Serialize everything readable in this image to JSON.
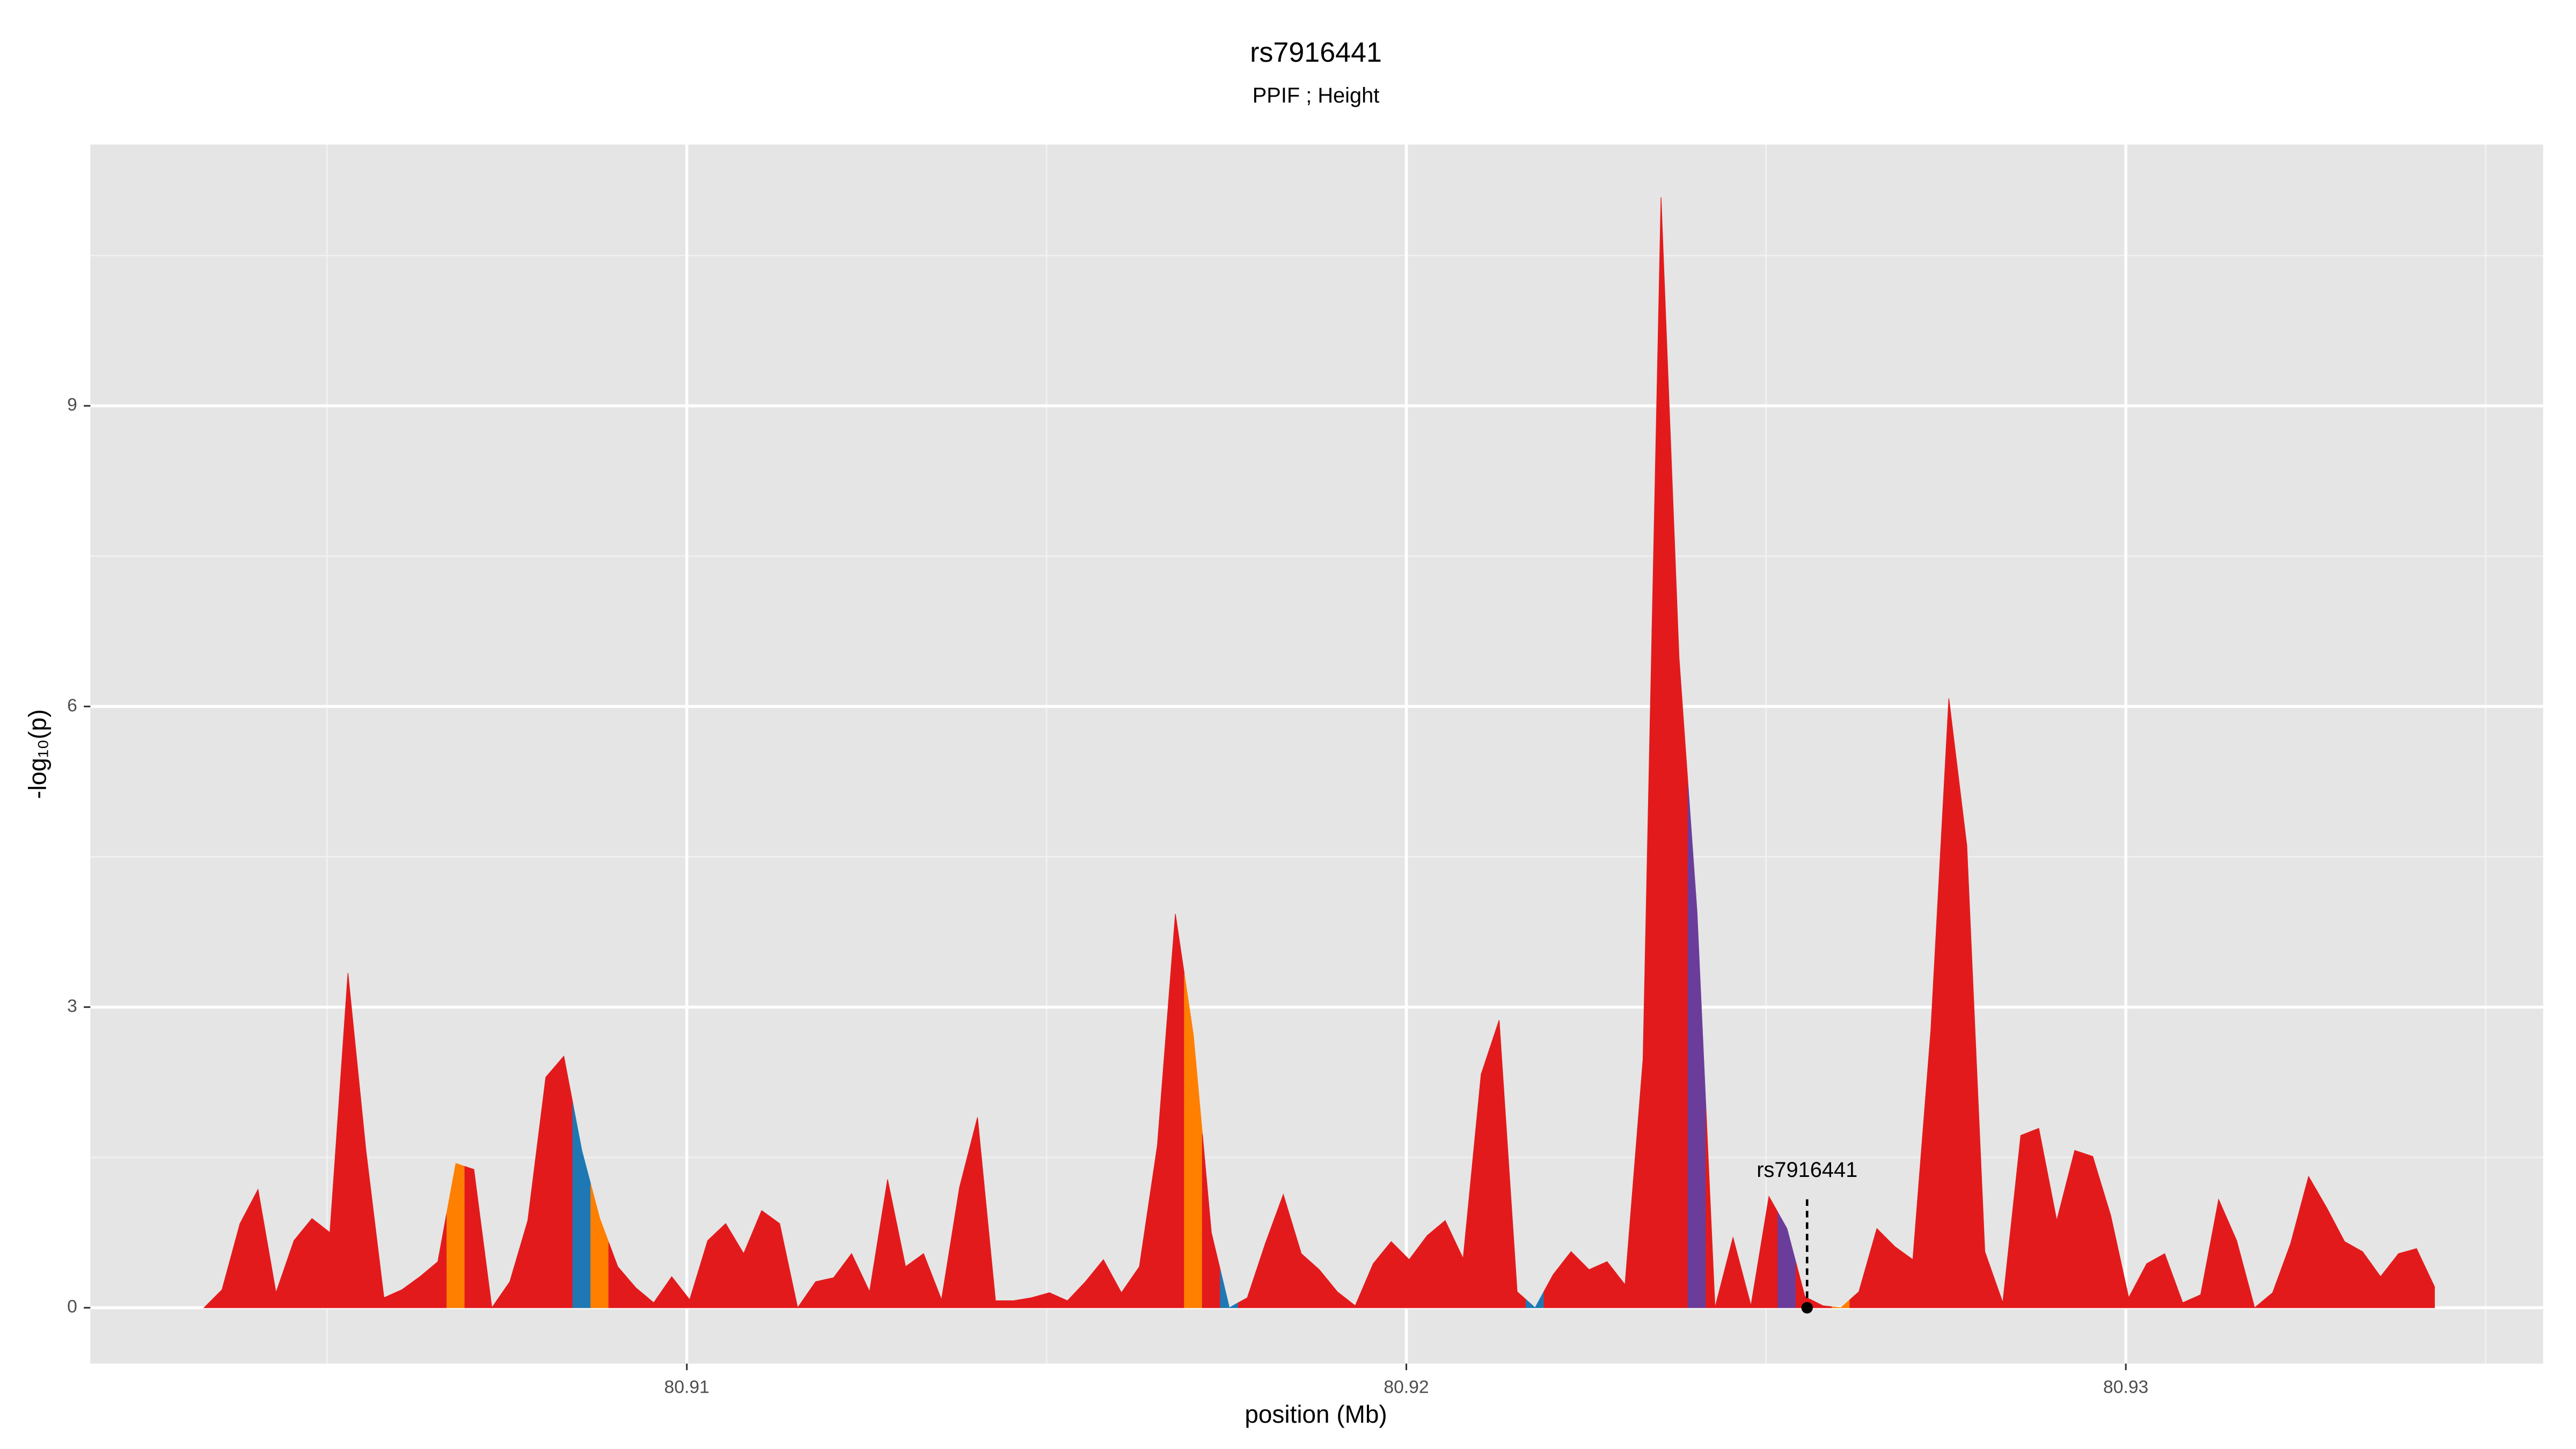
{
  "chart_data": {
    "type": "area",
    "title": "rs7916441",
    "subtitle": "PPIF ; Height",
    "xlabel": "position (Mb)",
    "ylabel": "-log₁₀(p)",
    "xlim": [
      80.90171,
      80.9358
    ],
    "ylim": [
      -0.557,
      11.607
    ],
    "xticks": [
      80.91,
      80.92,
      80.93
    ],
    "yticks": [
      0,
      3,
      6,
      9
    ],
    "grid": true,
    "x": [
      80.90329,
      80.90354,
      80.90379,
      80.90404,
      80.90429,
      80.90454,
      80.90479,
      80.90504,
      80.90529,
      80.90554,
      80.90579,
      80.90604,
      80.90629,
      80.90654,
      80.90679,
      80.90704,
      80.90729,
      80.90754,
      80.90779,
      80.90804,
      80.90829,
      80.90854,
      80.90879,
      80.90904,
      80.90929,
      80.90954,
      80.90979,
      80.91004,
      80.91029,
      80.91054,
      80.91079,
      80.91104,
      80.91129,
      80.91154,
      80.91179,
      80.91204,
      80.91229,
      80.91254,
      80.91279,
      80.91304,
      80.91329,
      80.91354,
      80.91379,
      80.91404,
      80.91429,
      80.91454,
      80.91479,
      80.91504,
      80.91529,
      80.91554,
      80.91579,
      80.91604,
      80.91629,
      80.91654,
      80.91679,
      80.91704,
      80.91729,
      80.91754,
      80.91779,
      80.91804,
      80.91829,
      80.91854,
      80.91879,
      80.91904,
      80.91929,
      80.91954,
      80.91979,
      80.92004,
      80.92029,
      80.92054,
      80.92079,
      80.92104,
      80.92129,
      80.92154,
      80.92179,
      80.92204,
      80.92229,
      80.92254,
      80.92279,
      80.92304,
      80.92329,
      80.92354,
      80.92379,
      80.92404,
      80.92429,
      80.92454,
      80.92479,
      80.92504,
      80.92529,
      80.92554,
      80.92579,
      80.92604,
      80.92629,
      80.92654,
      80.92679,
      80.92704,
      80.92729,
      80.92754,
      80.92779,
      80.92804,
      80.92829,
      80.92854,
      80.92879,
      80.92904,
      80.92929,
      80.92954,
      80.92979,
      80.93004,
      80.93029,
      80.93054,
      80.93079,
      80.93104,
      80.93129,
      80.93154,
      80.93179,
      80.93204,
      80.93229,
      80.93254,
      80.93279,
      80.93304,
      80.93329,
      80.93354,
      80.93379,
      80.93404,
      80.93429
    ],
    "values": [
      0,
      0.18,
      0.84,
      1.18,
      0.15,
      0.67,
      0.89,
      0.75,
      3.34,
      1.57,
      0.1,
      0.18,
      0.31,
      0.46,
      1.44,
      1.38,
      0,
      0.26,
      0.87,
      2.3,
      2.51,
      1.57,
      0.89,
      0.41,
      0.2,
      0.05,
      0.31,
      0.08,
      0.67,
      0.84,
      0.54,
      0.97,
      0.84,
      0,
      0.26,
      0.3,
      0.54,
      0.16,
      1.28,
      0.41,
      0.54,
      0.08,
      1.2,
      1.9,
      0.07,
      0.07,
      0.1,
      0.15,
      0.07,
      0.26,
      0.48,
      0.15,
      0.41,
      1.62,
      3.93,
      2.72,
      0.75,
      0,
      0.1,
      0.64,
      1.13,
      0.54,
      0.38,
      0.16,
      0.02,
      0.44,
      0.66,
      0.48,
      0.72,
      0.87,
      0.49,
      2.33,
      2.87,
      0.16,
      0,
      0.33,
      0.56,
      0.38,
      0.46,
      0.23,
      2.48,
      11.08,
      6.49,
      3.95,
      0,
      0.7,
      0.02,
      1.11,
      0.79,
      0.11,
      0.02,
      0,
      0.16,
      0.79,
      0.61,
      0.48,
      2.77,
      6.08,
      4.61,
      0.56,
      0.05,
      1.72,
      1.79,
      0.87,
      1.57,
      1.51,
      0.92,
      0.1,
      0.44,
      0.54,
      0.05,
      0.13,
      1.08,
      0.67,
      0,
      0.15,
      0.64,
      1.31,
      1.0,
      0.66,
      0.56,
      0.31,
      0.54,
      0.59,
      0.21
    ],
    "colors": [
      "#e31a1c",
      "#e31a1c",
      "#e31a1c",
      "#e31a1c",
      "#e31a1c",
      "#e31a1c",
      "#e31a1c",
      "#e31a1c",
      "#e31a1c",
      "#e31a1c",
      "#e31a1c",
      "#e31a1c",
      "#e31a1c",
      "#e31a1c",
      "#ff7f00",
      "#e31a1c",
      "#e31a1c",
      "#e31a1c",
      "#e31a1c",
      "#e31a1c",
      "#e31a1c",
      "#1f78b4",
      "#ff7f00",
      "#e31a1c",
      "#e31a1c",
      "#e31a1c",
      "#e31a1c",
      "#e31a1c",
      "#e31a1c",
      "#e31a1c",
      "#e31a1c",
      "#e31a1c",
      "#e31a1c",
      "#e31a1c",
      "#e31a1c",
      "#e31a1c",
      "#e31a1c",
      "#e31a1c",
      "#e31a1c",
      "#e31a1c",
      "#e31a1c",
      "#e31a1c",
      "#e31a1c",
      "#e31a1c",
      "#e31a1c",
      "#e31a1c",
      "#e31a1c",
      "#e31a1c",
      "#e31a1c",
      "#e31a1c",
      "#e31a1c",
      "#e31a1c",
      "#e31a1c",
      "#e31a1c",
      "#e31a1c",
      "#ff7f00",
      "#e31a1c",
      "#1f78b4",
      "#e31a1c",
      "#e31a1c",
      "#e31a1c",
      "#e31a1c",
      "#e31a1c",
      "#e31a1c",
      "#e31a1c",
      "#e31a1c",
      "#e31a1c",
      "#e31a1c",
      "#e31a1c",
      "#e31a1c",
      "#e31a1c",
      "#e31a1c",
      "#e31a1c",
      "#e31a1c",
      "#1f78b4",
      "#e31a1c",
      "#e31a1c",
      "#e31a1c",
      "#e31a1c",
      "#e31a1c",
      "#e31a1c",
      "#e31a1c",
      "#e31a1c",
      "#6a3d9a",
      "#e31a1c",
      "#e31a1c",
      "#e31a1c",
      "#e31a1c",
      "#6a3d9a",
      "#e31a1c",
      "#e31a1c",
      "#ff7f00",
      "#e31a1c",
      "#e31a1c",
      "#e31a1c",
      "#e31a1c",
      "#e31a1c",
      "#e31a1c",
      "#e31a1c",
      "#e31a1c",
      "#e31a1c",
      "#e31a1c",
      "#e31a1c",
      "#e31a1c",
      "#e31a1c",
      "#e31a1c",
      "#e31a1c",
      "#e31a1c",
      "#e31a1c",
      "#e31a1c",
      "#e31a1c",
      "#e31a1c",
      "#e31a1c",
      "#e31a1c",
      "#e31a1c",
      "#e31a1c",
      "#e31a1c",
      "#e31a1c",
      "#e31a1c",
      "#e31a1c",
      "#e31a1c",
      "#e31a1c",
      "#e31a1c",
      "#e31a1c",
      "#e31a1c"
    ],
    "annotation": {
      "text": "rs7916441",
      "x": 80.92557,
      "y": 0
    }
  }
}
